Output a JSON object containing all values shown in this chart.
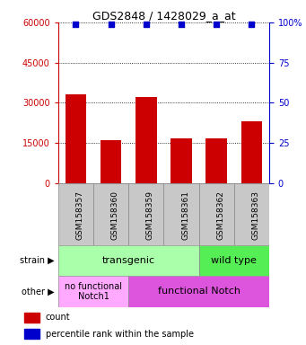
{
  "title": "GDS2848 / 1428029_a_at",
  "samples": [
    "GSM158357",
    "GSM158360",
    "GSM158359",
    "GSM158361",
    "GSM158362",
    "GSM158363"
  ],
  "counts": [
    33000,
    16000,
    32000,
    16500,
    16500,
    23000
  ],
  "percentiles": [
    99,
    99,
    99,
    99,
    99,
    99
  ],
  "left_yticks": [
    0,
    15000,
    30000,
    45000,
    60000
  ],
  "right_yticks": [
    0,
    25,
    50,
    75,
    100
  ],
  "bar_color": "#cc0000",
  "dot_color": "#0000cc",
  "left_axis_color": "#cc0000",
  "right_axis_color": "#0000cc",
  "ylim_left": [
    0,
    60000
  ],
  "ylim_right": [
    0,
    100
  ],
  "strain_transgenic_label": "transgenic",
  "strain_wildtype_label": "wild type",
  "other_nofunc_label": "no functional\nNotch1",
  "other_func_label": "functional Notch",
  "strain_label": "strain",
  "other_label": "other",
  "legend_count_label": "count",
  "legend_pct_label": "percentile rank within the sample",
  "transgenic_color": "#aaffaa",
  "wildtype_color": "#55ee55",
  "nofunc_color": "#ffaaff",
  "func_color": "#dd55dd",
  "bg_color": "#ffffff",
  "tick_area_color": "#c8c8c8"
}
